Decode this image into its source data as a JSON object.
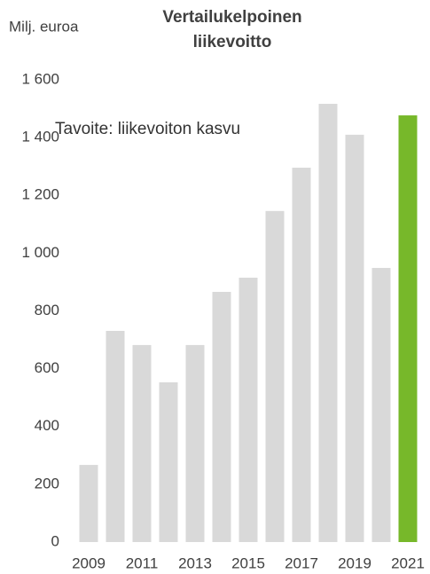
{
  "chart_data": {
    "type": "bar",
    "title": [
      "Vertailukelpoinen",
      "liikevoitto"
    ],
    "y_label": "Milj. euroa",
    "annotation": "Tavoite: liikevoiton kasvu",
    "categories": [
      "2009",
      null,
      "2011",
      null,
      "2013",
      null,
      "2015",
      null,
      "2017",
      null,
      "2019",
      null,
      "2021"
    ],
    "values": [
      267,
      731,
      682,
      553,
      682,
      866,
      915,
      1146,
      1296,
      1517,
      1410,
      949,
      1477
    ],
    "colors": [
      "#d9d9d9",
      "#d9d9d9",
      "#d9d9d9",
      "#d9d9d9",
      "#d9d9d9",
      "#d9d9d9",
      "#d9d9d9",
      "#d9d9d9",
      "#d9d9d9",
      "#d9d9d9",
      "#d9d9d9",
      "#d9d9d9",
      "#77b82a"
    ],
    "ylim": [
      0,
      1600
    ],
    "yticks": [
      0,
      200,
      400,
      600,
      800,
      {
        "value": 1000,
        "label": "1 000"
      },
      {
        "value": 1200,
        "label": "1 200"
      },
      {
        "value": 1400,
        "label": "1 400"
      },
      {
        "value": 1600,
        "label": "1 600"
      }
    ],
    "grid": false
  }
}
